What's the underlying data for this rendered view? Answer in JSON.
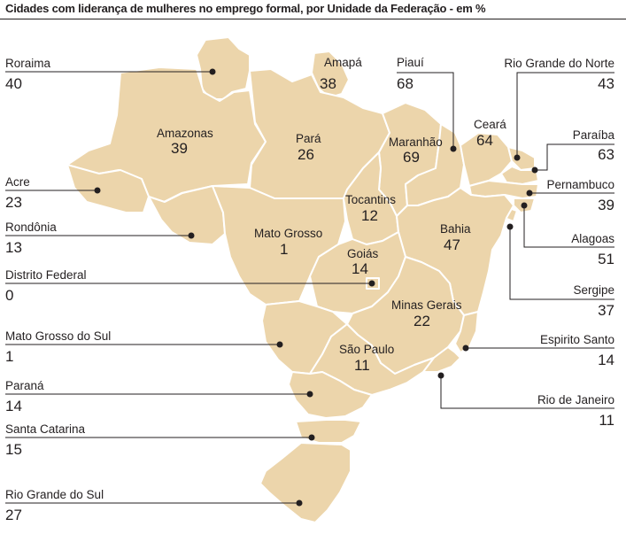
{
  "title": "Cidades com liderança de mulheres no emprego formal, por Unidade da Federação - em %",
  "colors": {
    "land": "#ecd5ab",
    "border": "#ffffff",
    "ink": "#231f20"
  },
  "states": {
    "roraima": {
      "name": "Roraima",
      "value": "40"
    },
    "amapa": {
      "name": "Amapá",
      "value": "38"
    },
    "piaui": {
      "name": "Piauí",
      "value": "68"
    },
    "rgn": {
      "name": "Rio Grande do Norte",
      "value": "43"
    },
    "amazonas": {
      "name": "Amazonas",
      "value": "39"
    },
    "para": {
      "name": "Pará",
      "value": "26"
    },
    "maranhao": {
      "name": "Maranhão",
      "value": "69"
    },
    "ceara": {
      "name": "Ceará",
      "value": "64"
    },
    "paraiba": {
      "name": "Paraíba",
      "value": "63"
    },
    "acre": {
      "name": "Acre",
      "value": "23"
    },
    "pernambuco": {
      "name": "Pernambuco",
      "value": "39"
    },
    "tocantins": {
      "name": "Tocantins",
      "value": "12"
    },
    "rondonia": {
      "name": "Rondônia",
      "value": "13"
    },
    "mato_grosso": {
      "name": "Mato Grosso",
      "value": "1"
    },
    "bahia": {
      "name": "Bahia",
      "value": "47"
    },
    "alagoas": {
      "name": "Alagoas",
      "value": "51"
    },
    "goias": {
      "name": "Goiás",
      "value": "14"
    },
    "df": {
      "name": "Distrito Federal",
      "value": "0"
    },
    "sergipe": {
      "name": "Sergipe",
      "value": "37"
    },
    "minas": {
      "name": "Minas Gerais",
      "value": "22"
    },
    "ms": {
      "name": "Mato Grosso do Sul",
      "value": "1"
    },
    "es": {
      "name": "Espirito Santo",
      "value": "14"
    },
    "sao_paulo": {
      "name": "São Paulo",
      "value": "11"
    },
    "parana": {
      "name": "Paraná",
      "value": "14"
    },
    "rj": {
      "name": "Rio de Janeiro",
      "value": "11"
    },
    "sc": {
      "name": "Santa Catarina",
      "value": "15"
    },
    "rs": {
      "name": "Rio Grande do Sul",
      "value": "27"
    }
  }
}
